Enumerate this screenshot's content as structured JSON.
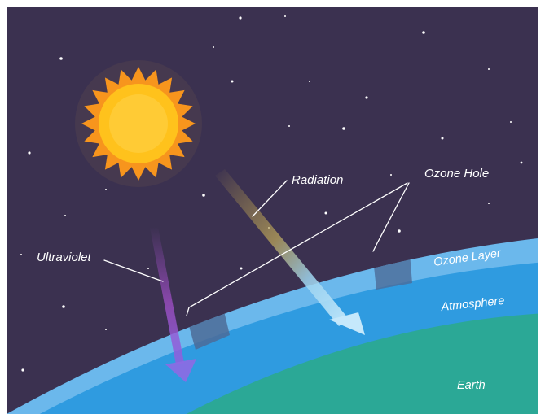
{
  "diagram": {
    "labels": {
      "radiation": "Radiation",
      "ozone_hole": "Ozone Hole",
      "ultraviolet": "Ultraviolet",
      "ozone_layer": "Ozone Layer",
      "atmosphere": "Atmosphere",
      "earth": "Earth"
    },
    "colors": {
      "space": "#3b3150",
      "sun_core": "#ffc21c",
      "sun_rays": "#f7951d",
      "ozone_layer": "#6bb8ec",
      "atmosphere": "#2f9be0",
      "earth": "#2ba896",
      "uv_arrow": "#a24fc9",
      "radiation_arrow": "#8fd3f5",
      "text": "#ffffff"
    }
  }
}
